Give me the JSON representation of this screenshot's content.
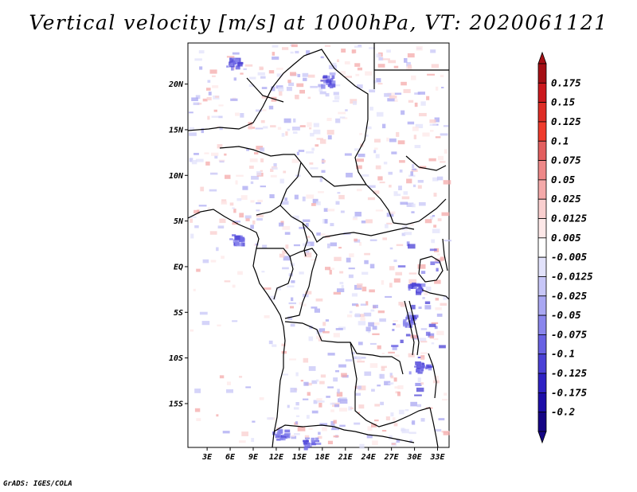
{
  "title": "Vertical velocity [m/s] at 1000hPa, VT: 2020061121",
  "credit": "GrADS: IGES/COLA",
  "map": {
    "lat_labels": [
      "20N",
      "15N",
      "10N",
      "5N",
      "EQ",
      "5S",
      "10S",
      "15S"
    ],
    "lon_labels": [
      "3E",
      "6E",
      "9E",
      "12E",
      "15E",
      "18E",
      "21E",
      "24E",
      "27E",
      "30E",
      "33E"
    ],
    "lat_values": [
      20,
      15,
      10,
      5,
      0,
      -5,
      -10,
      -15
    ],
    "lon_values": [
      3,
      6,
      9,
      12,
      15,
      18,
      21,
      24,
      27,
      30,
      33
    ],
    "lon_range": [
      0.5,
      34.5
    ],
    "lat_range": [
      -19.8,
      24.5
    ]
  },
  "colorbar": {
    "labels": [
      "0.175",
      "0.15",
      "0.125",
      "0.1",
      "0.075",
      "0.05",
      "0.025",
      "0.0125",
      "0.005",
      "-0.005",
      "-0.0125",
      "-0.025",
      "-0.05",
      "-0.075",
      "-0.1",
      "-0.125",
      "-0.175",
      "-0.2"
    ],
    "colors": [
      "#a50f15",
      "#cb181d",
      "#de2d26",
      "#ef3b2c",
      "#e35f5f",
      "#ee8888",
      "#f4a9a9",
      "#f9cfcf",
      "#fde8e8",
      "#ffffff",
      "#e2e2fb",
      "#c7c6f7",
      "#a9a7f2",
      "#8a86ec",
      "#6962e3",
      "#4b41d6",
      "#2f22c4",
      "#1d0ea8",
      "#150585"
    ]
  }
}
